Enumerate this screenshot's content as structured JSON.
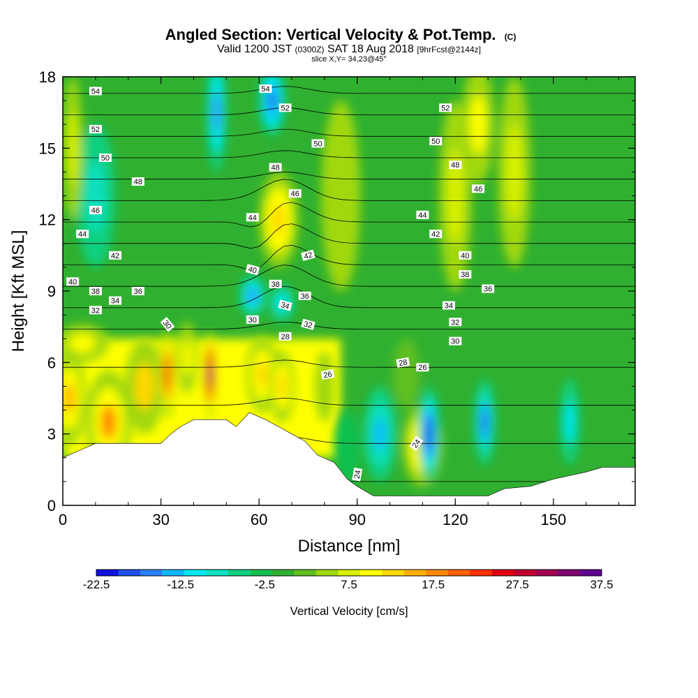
{
  "chart_data": {
    "type": "heatmap",
    "title": "Angled Section: Vertical Velocity & Pot.Temp.",
    "title_suffix": "(C)",
    "subtitle": {
      "valid": "Valid 1200 JST",
      "zulu": "(0300Z)",
      "date": "SAT 18 Aug 2018",
      "fcst": "[9hrFcst@2144z]"
    },
    "slice_label": "slice X,Y= 34,23@45°",
    "xlabel": "Distance [nm]",
    "ylabel": "Height [Kft MSL]",
    "xlim": [
      0,
      175
    ],
    "ylim": [
      0,
      18
    ],
    "x_ticks": [
      "0",
      "30",
      "60",
      "90",
      "120",
      "150"
    ],
    "y_ticks": [
      "0",
      "3",
      "6",
      "9",
      "12",
      "15",
      "18"
    ],
    "colorbar": {
      "title": "Vertical Velocity [cm/s]",
      "labels": [
        "-22.5",
        "-12.5",
        "-2.5",
        "7.5",
        "17.5",
        "27.5",
        "37.5"
      ],
      "min": -22.5,
      "max": 37.5,
      "colors": [
        "#1010e0",
        "#2050f0",
        "#2a80ff",
        "#10b8ff",
        "#00e8f0",
        "#10e0c0",
        "#10d080",
        "#10c050",
        "#30b030",
        "#60c020",
        "#a0d810",
        "#d8f000",
        "#ffff00",
        "#ffd800",
        "#ffb000",
        "#ff8800",
        "#ff6000",
        "#ff3000",
        "#e00010",
        "#c00030",
        "#a00050",
        "#800070",
        "#600090"
      ]
    },
    "terrain_profile": [
      [
        0,
        2.0
      ],
      [
        5,
        2.3
      ],
      [
        10,
        2.6
      ],
      [
        30,
        2.6
      ],
      [
        33,
        3.0
      ],
      [
        36,
        3.3
      ],
      [
        40,
        3.6
      ],
      [
        50,
        3.6
      ],
      [
        53,
        3.3
      ],
      [
        57,
        3.9
      ],
      [
        62,
        3.6
      ],
      [
        66,
        3.3
      ],
      [
        70,
        3.0
      ],
      [
        74,
        2.7
      ],
      [
        78,
        2.1
      ],
      [
        83,
        1.8
      ],
      [
        87,
        1.1
      ],
      [
        90,
        0.8
      ],
      [
        95,
        0.4
      ],
      [
        130,
        0.4
      ],
      [
        135,
        0.7
      ],
      [
        143,
        0.8
      ],
      [
        150,
        1.1
      ],
      [
        160,
        1.4
      ],
      [
        165,
        1.6
      ],
      [
        175,
        1.6
      ]
    ],
    "velocity_cells": [
      {
        "x": 2,
        "y": 4.5,
        "rx": 5,
        "ry": 2.0,
        "w": 15
      },
      {
        "x": 14,
        "y": 3.5,
        "rx": 7,
        "ry": 2.2,
        "w": 17
      },
      {
        "x": 25,
        "y": 5.0,
        "rx": 6,
        "ry": 2.0,
        "w": 12
      },
      {
        "x": 32,
        "y": 5.5,
        "rx": 2.5,
        "ry": 1.8,
        "w": 26
      },
      {
        "x": 45,
        "y": 5.5,
        "rx": 2.0,
        "ry": 1.8,
        "w": 35
      },
      {
        "x": 38,
        "y": 6.2,
        "rx": 3,
        "ry": 1.5,
        "w": 10
      },
      {
        "x": 61,
        "y": 5.5,
        "rx": 5,
        "ry": 1.6,
        "w": 13
      },
      {
        "x": 67,
        "y": 5.0,
        "rx": 4,
        "ry": 1.5,
        "w": 14
      },
      {
        "x": 80,
        "y": 5.0,
        "rx": 3,
        "ry": 1.5,
        "w": 5
      },
      {
        "x": 66,
        "y": 12.0,
        "rx": 6,
        "ry": 2.0,
        "w": 14
      },
      {
        "x": 6,
        "y": 6.8,
        "rx": 8,
        "ry": 0.8,
        "w": 9
      },
      {
        "x": 110,
        "y": 2.5,
        "rx": 6,
        "ry": 1.7,
        "w": 14
      },
      {
        "x": 97,
        "y": 3.0,
        "rx": 5,
        "ry": 2.0,
        "w": -13
      },
      {
        "x": 112,
        "y": 3.0,
        "rx": 3.2,
        "ry": 2.0,
        "w": -22
      },
      {
        "x": 129,
        "y": 3.5,
        "rx": 3.2,
        "ry": 1.8,
        "w": -18
      },
      {
        "x": 155,
        "y": 3.5,
        "rx": 3,
        "ry": 1.8,
        "w": -10
      },
      {
        "x": 87,
        "y": 2.5,
        "rx": 4,
        "ry": 1.5,
        "w": -4
      },
      {
        "x": 58,
        "y": 8.8,
        "rx": 4,
        "ry": 0.9,
        "w": -16
      },
      {
        "x": 67,
        "y": 8.5,
        "rx": 4,
        "ry": 0.8,
        "w": -12
      },
      {
        "x": 47,
        "y": 16.5,
        "rx": 3,
        "ry": 2.5,
        "w": -15
      },
      {
        "x": 64,
        "y": 17.0,
        "rx": 4,
        "ry": 1.5,
        "w": -19
      },
      {
        "x": 10,
        "y": 13.0,
        "rx": 6,
        "ry": 3.0,
        "w": -9
      },
      {
        "x": 3,
        "y": 15,
        "rx": 3,
        "ry": 3.0,
        "w": 8
      },
      {
        "x": 85,
        "y": 13,
        "rx": 6,
        "ry": 4.0,
        "w": 6
      },
      {
        "x": 120,
        "y": 13,
        "rx": 5,
        "ry": 4.0,
        "w": 8
      },
      {
        "x": 138,
        "y": 14,
        "rx": 5,
        "ry": 4.0,
        "w": 8
      },
      {
        "x": 127,
        "y": 16,
        "rx": 5,
        "ry": 2.5,
        "w": 10
      },
      {
        "x": 105,
        "y": 5.5,
        "rx": 4,
        "ry": 1.5,
        "w": 2
      }
    ],
    "theta_levels": [
      24,
      26,
      28,
      30,
      32,
      34,
      36,
      38,
      40,
      42,
      44,
      46,
      48,
      50,
      52,
      54
    ],
    "theta_labels": [
      {
        "text": "54",
        "x": 10,
        "y": 17.4,
        "a": 0
      },
      {
        "text": "52",
        "x": 10,
        "y": 15.8,
        "a": 0
      },
      {
        "text": "50",
        "x": 13,
        "y": 14.6,
        "a": 0
      },
      {
        "text": "48",
        "x": 23,
        "y": 13.6,
        "a": 0
      },
      {
        "text": "46",
        "x": 10,
        "y": 12.4,
        "a": 0
      },
      {
        "text": "44",
        "x": 6,
        "y": 11.4,
        "a": 0
      },
      {
        "text": "42",
        "x": 16,
        "y": 10.5,
        "a": 0
      },
      {
        "text": "40",
        "x": 3,
        "y": 9.4,
        "a": 0
      },
      {
        "text": "38",
        "x": 10,
        "y": 9.0,
        "a": 0
      },
      {
        "text": "36",
        "x": 23,
        "y": 9.0,
        "a": 0
      },
      {
        "text": "34",
        "x": 16,
        "y": 8.6,
        "a": 0
      },
      {
        "text": "32",
        "x": 10,
        "y": 8.2,
        "a": 0
      },
      {
        "text": "30",
        "x": 32,
        "y": 7.6,
        "a": 50
      },
      {
        "text": "54",
        "x": 62,
        "y": 17.5,
        "a": 0
      },
      {
        "text": "52",
        "x": 68,
        "y": 16.7,
        "a": 0
      },
      {
        "text": "50",
        "x": 78,
        "y": 15.2,
        "a": 0
      },
      {
        "text": "48",
        "x": 65,
        "y": 14.2,
        "a": 0
      },
      {
        "text": "46",
        "x": 71,
        "y": 13.1,
        "a": 0
      },
      {
        "text": "44",
        "x": 58,
        "y": 12.1,
        "a": 0
      },
      {
        "text": "42",
        "x": 75,
        "y": 10.5,
        "a": -15
      },
      {
        "text": "40",
        "x": 58,
        "y": 9.9,
        "a": 15
      },
      {
        "text": "38",
        "x": 65,
        "y": 9.3,
        "a": 0
      },
      {
        "text": "36",
        "x": 74,
        "y": 8.8,
        "a": 0
      },
      {
        "text": "34",
        "x": 68,
        "y": 8.4,
        "a": 15
      },
      {
        "text": "32",
        "x": 75,
        "y": 7.6,
        "a": 15
      },
      {
        "text": "30",
        "x": 58,
        "y": 7.8,
        "a": 0
      },
      {
        "text": "28",
        "x": 68,
        "y": 7.1,
        "a": 0
      },
      {
        "text": "26",
        "x": 81,
        "y": 5.5,
        "a": -10
      },
      {
        "text": "24",
        "x": 90,
        "y": 1.3,
        "a": -80
      },
      {
        "text": "24",
        "x": 108,
        "y": 2.6,
        "a": -55
      },
      {
        "text": "52",
        "x": 117,
        "y": 16.7,
        "a": 0
      },
      {
        "text": "50",
        "x": 114,
        "y": 15.3,
        "a": 0
      },
      {
        "text": "48",
        "x": 120,
        "y": 14.3,
        "a": 0
      },
      {
        "text": "46",
        "x": 127,
        "y": 13.3,
        "a": 0
      },
      {
        "text": "44",
        "x": 110,
        "y": 12.2,
        "a": 0
      },
      {
        "text": "42",
        "x": 114,
        "y": 11.4,
        "a": 0
      },
      {
        "text": "40",
        "x": 123,
        "y": 10.5,
        "a": 0
      },
      {
        "text": "38",
        "x": 123,
        "y": 9.7,
        "a": 0
      },
      {
        "text": "36",
        "x": 130,
        "y": 9.1,
        "a": 0
      },
      {
        "text": "34",
        "x": 118,
        "y": 8.4,
        "a": 0
      },
      {
        "text": "32",
        "x": 120,
        "y": 7.7,
        "a": 0
      },
      {
        "text": "30",
        "x": 120,
        "y": 6.9,
        "a": 0
      },
      {
        "text": "28",
        "x": 104,
        "y": 6.0,
        "a": -10
      },
      {
        "text": "26",
        "x": 110,
        "y": 5.8,
        "a": 0
      }
    ],
    "grid": false,
    "legend": "bottom colorbar"
  }
}
